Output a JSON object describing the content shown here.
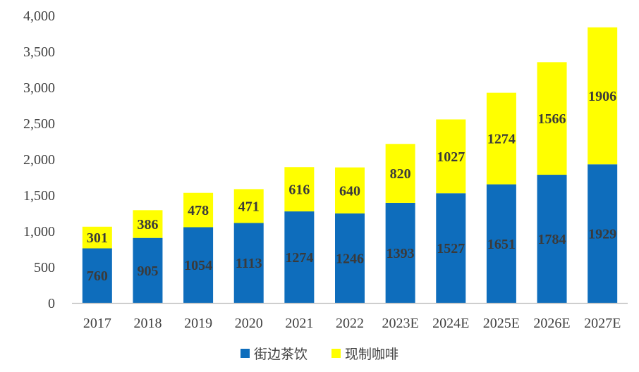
{
  "chart_data": {
    "type": "bar",
    "stacked": true,
    "categories": [
      "2017",
      "2018",
      "2019",
      "2020",
      "2021",
      "2022",
      "2023E",
      "2024E",
      "2025E",
      "2026E",
      "2027E"
    ],
    "series": [
      {
        "name": "街边茶饮",
        "color": "#0e6dbc",
        "values": [
          760,
          905,
          1054,
          1113,
          1274,
          1246,
          1393,
          1527,
          1651,
          1784,
          1929
        ]
      },
      {
        "name": "现制咖啡",
        "color": "#ffff00",
        "values": [
          301,
          386,
          478,
          471,
          616,
          640,
          820,
          1027,
          1274,
          1566,
          1906
        ]
      }
    ],
    "ylim": [
      0,
      4000
    ],
    "yticks": [
      0,
      500,
      1000,
      1500,
      2000,
      2500,
      3000,
      3500,
      4000
    ],
    "ytick_labels": [
      "0",
      "500",
      "1,000",
      "1,500",
      "2,000",
      "2,500",
      "3,000",
      "3,500",
      "4,000"
    ],
    "grid": false,
    "legend_position": "bottom"
  }
}
